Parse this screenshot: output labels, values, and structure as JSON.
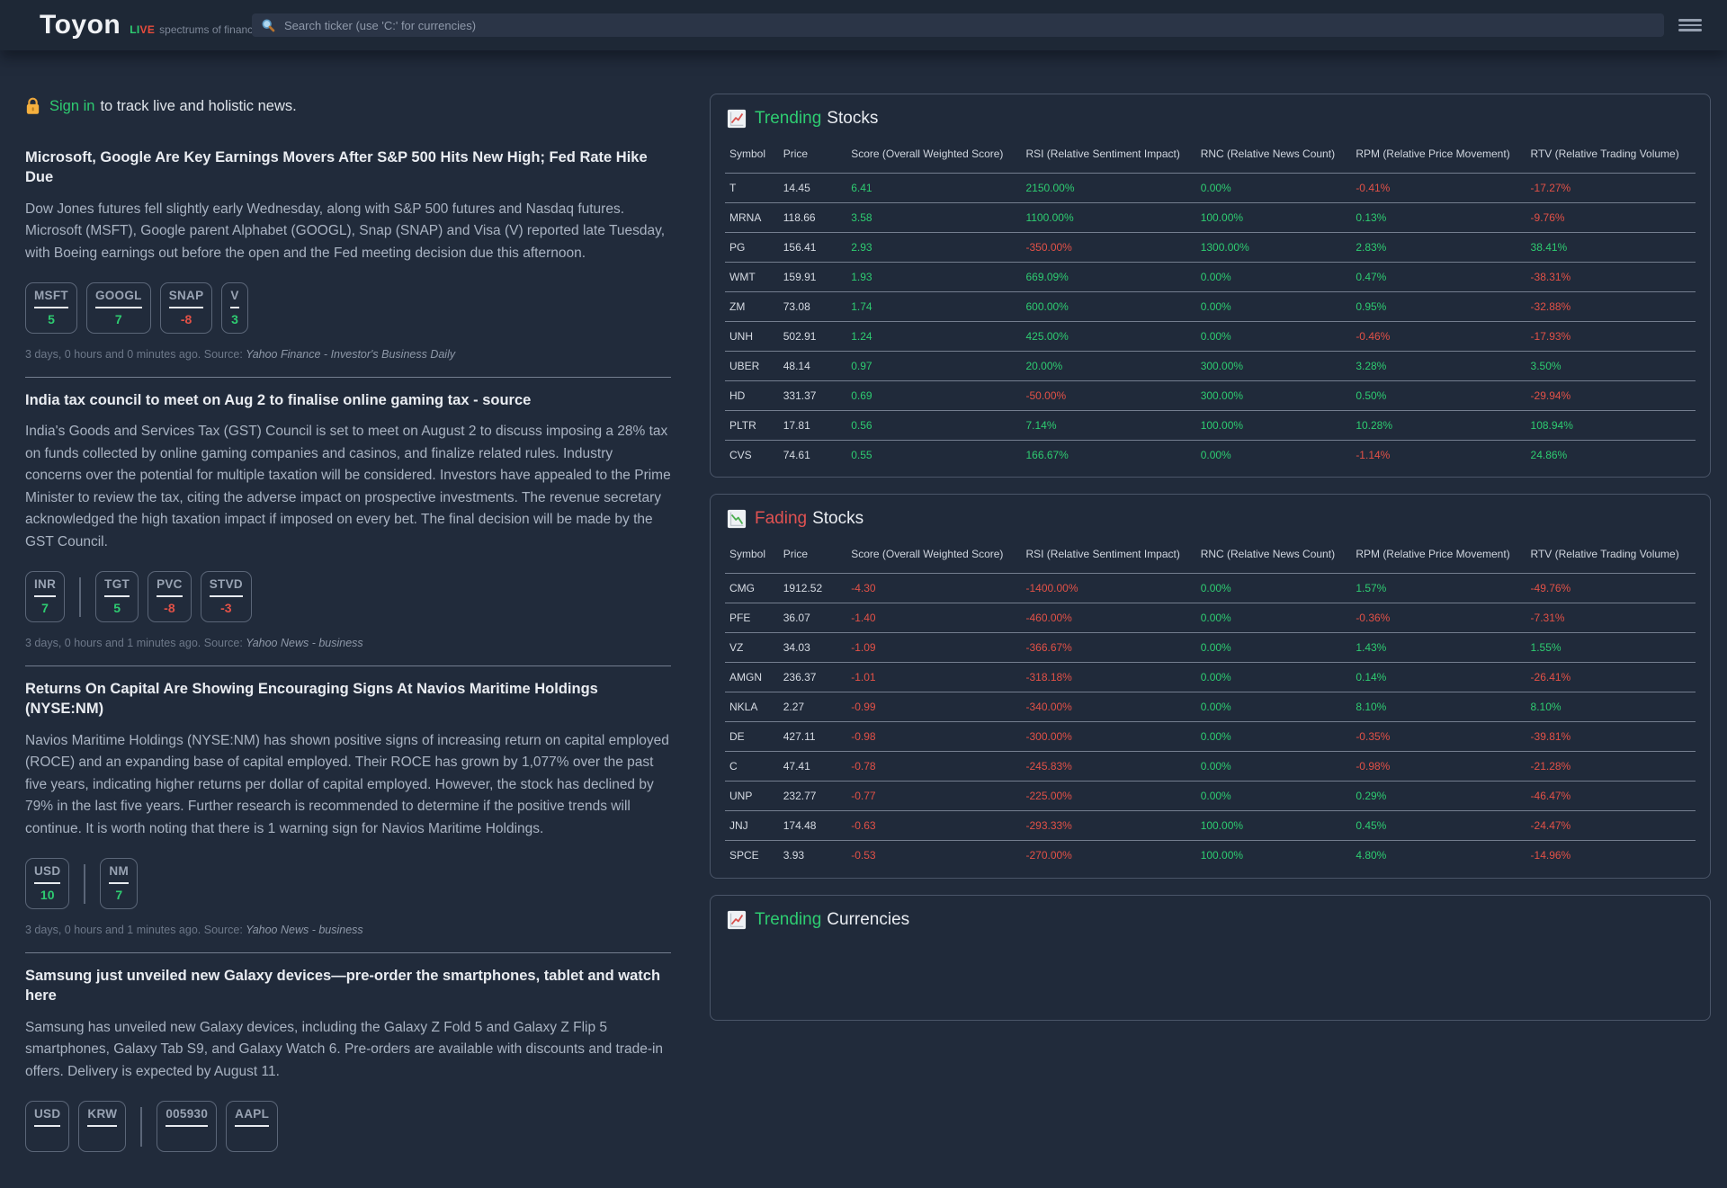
{
  "colors": {
    "green": "#2ecc71",
    "red": "#e25147",
    "fading_accent": "#e05252"
  },
  "topbar": {
    "logo": "Toyon",
    "live_first": "LI",
    "live_second": "VE",
    "tagline": "spectrums of finance",
    "search_placeholder": "Search ticker (use 'C:' for currencies)"
  },
  "signin": {
    "link_text": "Sign in",
    "rest_text": "to track live and holistic news."
  },
  "articles": [
    {
      "headline": "Microsoft, Google Are Key Earnings Movers After S&P 500 Hits New High; Fed Rate Hike Due",
      "body": "Dow Jones futures fell slightly early Wednesday, along with S&P 500 futures and Nasdaq futures. Microsoft (MSFT), Google parent Alphabet (GOOGL), Snap (SNAP) and Visa (V) reported late Tuesday, with Boeing earnings out before the open and the Fed meeting decision due this afternoon.",
      "tag_groups": [
        [
          {
            "ticker": "MSFT",
            "score": "5"
          },
          {
            "ticker": "GOOGL",
            "score": "7"
          },
          {
            "ticker": "SNAP",
            "score": "-8"
          },
          {
            "ticker": "V",
            "score": "3"
          }
        ]
      ],
      "meta": "3 days, 0 hours and 0 minutes ago. Source:",
      "source": "Yahoo Finance - Investor's Business Daily"
    },
    {
      "headline": "India tax council to meet on Aug 2 to finalise online gaming tax - source",
      "body": "India's Goods and Services Tax (GST) Council is set to meet on August 2 to discuss imposing a 28% tax on funds collected by online gaming companies and casinos, and finalize related rules. Industry concerns over the potential for multiple taxation will be considered. Investors have appealed to the Prime Minister to review the tax, citing the adverse impact on prospective investments. The revenue secretary acknowledged the high taxation impact if imposed on every bet. The final decision will be made by the GST Council.",
      "tag_groups": [
        [
          {
            "ticker": "INR",
            "score": "7"
          }
        ],
        [
          {
            "ticker": "TGT",
            "score": "5"
          },
          {
            "ticker": "PVC",
            "score": "-8"
          },
          {
            "ticker": "STVD",
            "score": "-3"
          }
        ]
      ],
      "meta": "3 days, 0 hours and 1 minutes ago. Source:",
      "source": "Yahoo News - business"
    },
    {
      "headline": "Returns On Capital Are Showing Encouraging Signs At Navios Maritime Holdings (NYSE:NM)",
      "body": "Navios Maritime Holdings (NYSE:NM) has shown positive signs of increasing return on capital employed (ROCE) and an expanding base of capital employed. Their ROCE has grown by 1,077% over the past five years, indicating higher returns per dollar of capital employed. However, the stock has declined by 79% in the last five years. Further research is recommended to determine if the positive trends will continue. It is worth noting that there is 1 warning sign for Navios Maritime Holdings.",
      "tag_groups": [
        [
          {
            "ticker": "USD",
            "score": "10"
          }
        ],
        [
          {
            "ticker": "NM",
            "score": "7"
          }
        ]
      ],
      "meta": "3 days, 0 hours and 1 minutes ago. Source:",
      "source": "Yahoo News - business"
    },
    {
      "headline": "Samsung just unveiled new Galaxy devices—pre-order the smartphones, tablet and watch here",
      "body": "Samsung has unveiled new Galaxy devices, including the Galaxy Z Fold 5 and Galaxy Z Flip 5 smartphones, Galaxy Tab S9, and Galaxy Watch 6. Pre-orders are available with discounts and trade-in offers. Delivery is expected by August 11.",
      "tag_groups": [
        [
          {
            "ticker": "USD",
            "score": ""
          },
          {
            "ticker": "KRW",
            "score": ""
          }
        ],
        [
          {
            "ticker": "005930",
            "score": ""
          },
          {
            "ticker": "AAPL",
            "score": ""
          }
        ]
      ],
      "meta": "",
      "source": ""
    }
  ],
  "tables": [
    {
      "id": "trending-stocks",
      "icon": "chart-increasing-icon",
      "title_accent": "Trending",
      "accent_color": "#2ecc71",
      "title_rest": "Stocks",
      "columns": [
        "Symbol",
        "Price",
        "Score (Overall Weighted Score)",
        "RSI (Relative Sentiment Impact)",
        "RNC (Relative News Count)",
        "RPM (Relative Price Movement)",
        "RTV (Relative Trading Volume)"
      ],
      "rows": [
        {
          "symbol": "T",
          "price": "14.45",
          "values": [
            "6.41",
            "2150.00%",
            "0.00%",
            "-0.41%",
            "-17.27%"
          ]
        },
        {
          "symbol": "MRNA",
          "price": "118.66",
          "values": [
            "3.58",
            "1100.00%",
            "100.00%",
            "0.13%",
            "-9.76%"
          ]
        },
        {
          "symbol": "PG",
          "price": "156.41",
          "values": [
            "2.93",
            "-350.00%",
            "1300.00%",
            "2.83%",
            "38.41%"
          ]
        },
        {
          "symbol": "WMT",
          "price": "159.91",
          "values": [
            "1.93",
            "669.09%",
            "0.00%",
            "0.47%",
            "-38.31%"
          ]
        },
        {
          "symbol": "ZM",
          "price": "73.08",
          "values": [
            "1.74",
            "600.00%",
            "0.00%",
            "0.95%",
            "-32.88%"
          ]
        },
        {
          "symbol": "UNH",
          "price": "502.91",
          "values": [
            "1.24",
            "425.00%",
            "0.00%",
            "-0.46%",
            "-17.93%"
          ]
        },
        {
          "symbol": "UBER",
          "price": "48.14",
          "values": [
            "0.97",
            "20.00%",
            "300.00%",
            "3.28%",
            "3.50%"
          ]
        },
        {
          "symbol": "HD",
          "price": "331.37",
          "values": [
            "0.69",
            "-50.00%",
            "300.00%",
            "0.50%",
            "-29.94%"
          ]
        },
        {
          "symbol": "PLTR",
          "price": "17.81",
          "values": [
            "0.56",
            "7.14%",
            "100.00%",
            "10.28%",
            "108.94%"
          ]
        },
        {
          "symbol": "CVS",
          "price": "74.61",
          "values": [
            "0.55",
            "166.67%",
            "0.00%",
            "-1.14%",
            "24.86%"
          ]
        }
      ]
    },
    {
      "id": "fading-stocks",
      "icon": "chart-decreasing-icon",
      "title_accent": "Fading",
      "accent_color": "#e05252",
      "title_rest": "Stocks",
      "columns": [
        "Symbol",
        "Price",
        "Score (Overall Weighted Score)",
        "RSI (Relative Sentiment Impact)",
        "RNC (Relative News Count)",
        "RPM (Relative Price Movement)",
        "RTV (Relative Trading Volume)"
      ],
      "rows": [
        {
          "symbol": "CMG",
          "price": "1912.52",
          "values": [
            "-4.30",
            "-1400.00%",
            "0.00%",
            "1.57%",
            "-49.76%"
          ]
        },
        {
          "symbol": "PFE",
          "price": "36.07",
          "values": [
            "-1.40",
            "-460.00%",
            "0.00%",
            "-0.36%",
            "-7.31%"
          ]
        },
        {
          "symbol": "VZ",
          "price": "34.03",
          "values": [
            "-1.09",
            "-366.67%",
            "0.00%",
            "1.43%",
            "1.55%"
          ]
        },
        {
          "symbol": "AMGN",
          "price": "236.37",
          "values": [
            "-1.01",
            "-318.18%",
            "0.00%",
            "0.14%",
            "-26.41%"
          ]
        },
        {
          "symbol": "NKLA",
          "price": "2.27",
          "values": [
            "-0.99",
            "-340.00%",
            "0.00%",
            "8.10%",
            "8.10%"
          ]
        },
        {
          "symbol": "DE",
          "price": "427.11",
          "values": [
            "-0.98",
            "-300.00%",
            "0.00%",
            "-0.35%",
            "-39.81%"
          ]
        },
        {
          "symbol": "C",
          "price": "47.41",
          "values": [
            "-0.78",
            "-245.83%",
            "0.00%",
            "-0.98%",
            "-21.28%"
          ]
        },
        {
          "symbol": "UNP",
          "price": "232.77",
          "values": [
            "-0.77",
            "-225.00%",
            "0.00%",
            "0.29%",
            "-46.47%"
          ]
        },
        {
          "symbol": "JNJ",
          "price": "174.48",
          "values": [
            "-0.63",
            "-293.33%",
            "100.00%",
            "0.45%",
            "-24.47%"
          ]
        },
        {
          "symbol": "SPCE",
          "price": "3.93",
          "values": [
            "-0.53",
            "-270.00%",
            "100.00%",
            "4.80%",
            "-14.96%"
          ]
        }
      ]
    },
    {
      "id": "trending-currencies",
      "icon": "chart-increasing-icon",
      "title_accent": "Trending",
      "accent_color": "#2ecc71",
      "title_rest": "Currencies",
      "columns": [],
      "rows": []
    }
  ]
}
